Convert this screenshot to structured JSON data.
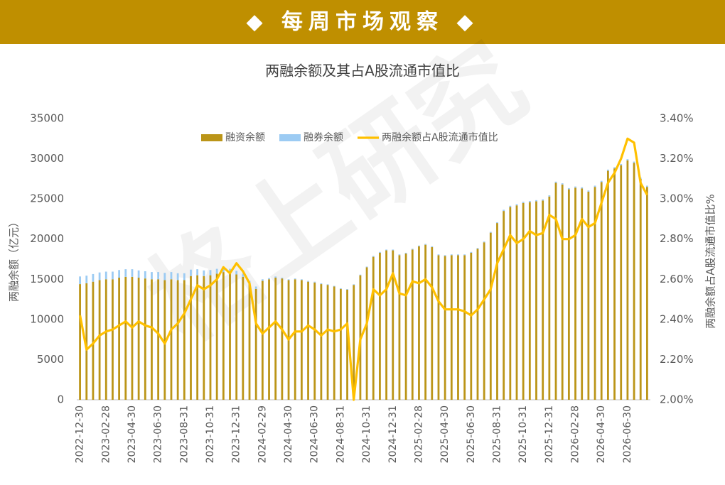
{
  "header": "◆ 每周市场观察 ◆",
  "watermark": "格上研究",
  "chart_data": {
    "type": "bar-line",
    "title": "两融余额及其占A股流通市值比",
    "y_label": "两融余额（亿元）",
    "y2_label": "两融余额占A股流通市值比%",
    "categories": [
      "2022-12-30",
      null,
      null,
      null,
      "2023-02-28",
      null,
      null,
      null,
      "2023-04-30",
      null,
      null,
      null,
      "2023-06-30",
      null,
      null,
      null,
      "2023-08-31",
      null,
      null,
      null,
      "2023-10-31",
      null,
      null,
      null,
      "2023-12-31",
      null,
      null,
      null,
      "2024-02-29",
      null,
      null,
      null,
      "2024-04-30",
      null,
      null,
      null,
      "2024-06-30",
      null,
      null,
      null,
      "2024-08-31",
      null,
      null,
      null,
      "2024-10-31",
      null,
      null,
      null,
      "2024-12-31",
      null,
      null,
      null,
      "2025-02-28",
      null,
      null,
      null,
      "2025-04-30",
      null,
      null,
      null,
      "2025-06-30",
      null,
      null,
      null,
      "2025-08-31",
      null,
      null,
      null,
      "2025-10-31",
      null,
      null,
      null,
      "2025-12-31",
      null,
      null,
      null,
      "2026-02-28",
      null,
      null,
      null,
      "2026-04-30",
      null,
      null,
      null,
      "2026-06-30",
      null,
      null,
      null
    ],
    "series": [
      {
        "name": "融资余额",
        "kind": "bar",
        "color": "#bb9518",
        "values": [
          14400,
          14500,
          14700,
          14900,
          15000,
          15000,
          15200,
          15300,
          15300,
          15200,
          15100,
          15000,
          15000,
          14900,
          15000,
          14900,
          14900,
          15400,
          15500,
          15400,
          15500,
          15700,
          15900,
          15800,
          15600,
          15300,
          14500,
          13800,
          14800,
          15000,
          15200,
          15100,
          14900,
          15000,
          14900,
          14700,
          14600,
          14400,
          14300,
          14100,
          13800,
          13700,
          14300,
          15500,
          16500,
          17800,
          18300,
          18600,
          18600,
          18000,
          18200,
          18700,
          19100,
          19300,
          19000,
          18000,
          17900,
          18000,
          18000,
          18000,
          18300,
          18800,
          19600,
          20800,
          22000,
          23500,
          24000,
          24200,
          24500,
          24600,
          24700,
          24800,
          25300,
          27000,
          26800,
          26200,
          26400,
          26300,
          25900,
          26500,
          27100,
          28500,
          28800,
          29200,
          29800,
          29500,
          27500,
          26500
        ]
      },
      {
        "name": "融券余额",
        "kind": "bar",
        "color": "#9ccbf3",
        "values": [
          950,
          950,
          950,
          950,
          950,
          950,
          950,
          950,
          950,
          900,
          900,
          900,
          900,
          900,
          900,
          850,
          850,
          800,
          750,
          700,
          650,
          600,
          550,
          500,
          450,
          400,
          300,
          300,
          200,
          150,
          150,
          100,
          100,
          100,
          100,
          100,
          100,
          100,
          80,
          80,
          80,
          80,
          80,
          80,
          80,
          100,
          100,
          100,
          100,
          100,
          100,
          100,
          100,
          100,
          100,
          100,
          100,
          100,
          100,
          100,
          100,
          100,
          100,
          100,
          100,
          150,
          150,
          150,
          150,
          150,
          150,
          150,
          150,
          150,
          150,
          150,
          150,
          150,
          150,
          150,
          150,
          150,
          150,
          150,
          150,
          150,
          150,
          150
        ]
      },
      {
        "name": "两融余额占A股流通市值比",
        "kind": "line",
        "axis": "y2",
        "color": "#ffc000",
        "values": [
          2.42,
          2.25,
          2.28,
          2.32,
          2.34,
          2.35,
          2.37,
          2.39,
          2.36,
          2.39,
          2.37,
          2.36,
          2.33,
          2.28,
          2.35,
          2.38,
          2.43,
          2.5,
          2.57,
          2.55,
          2.57,
          2.6,
          2.66,
          2.63,
          2.68,
          2.64,
          2.58,
          2.38,
          2.33,
          2.36,
          2.39,
          2.35,
          2.3,
          2.34,
          2.34,
          2.37,
          2.35,
          2.32,
          2.35,
          2.34,
          2.35,
          2.38,
          2.0,
          2.3,
          2.38,
          2.55,
          2.52,
          2.55,
          2.63,
          2.53,
          2.52,
          2.59,
          2.58,
          2.6,
          2.56,
          2.49,
          2.45,
          2.45,
          2.45,
          2.44,
          2.42,
          2.45,
          2.5,
          2.55,
          2.68,
          2.75,
          2.82,
          2.78,
          2.8,
          2.84,
          2.82,
          2.83,
          2.92,
          2.9,
          2.8,
          2.8,
          2.82,
          2.9,
          2.86,
          2.88,
          2.98,
          3.08,
          3.13,
          3.2,
          3.3,
          3.28,
          3.08,
          3.02
        ]
      }
    ],
    "ylim": [
      0,
      35000
    ],
    "yticks": [
      0,
      5000,
      10000,
      15000,
      20000,
      25000,
      30000,
      35000
    ],
    "y2lim": [
      2.0,
      3.4
    ],
    "y2ticks": [
      {
        "value": 2.0,
        "label": "2.00%"
      },
      {
        "value": 2.2,
        "label": "2.20%"
      },
      {
        "value": 2.4,
        "label": "2.40%"
      },
      {
        "value": 2.6,
        "label": "2.60%"
      },
      {
        "value": 2.8,
        "label": "2.80%"
      },
      {
        "value": 3.0,
        "label": "3.00%"
      },
      {
        "value": 3.2,
        "label": "3.20%"
      },
      {
        "value": 3.4,
        "label": "3.40%"
      }
    ],
    "grid": false,
    "legend": "top"
  }
}
